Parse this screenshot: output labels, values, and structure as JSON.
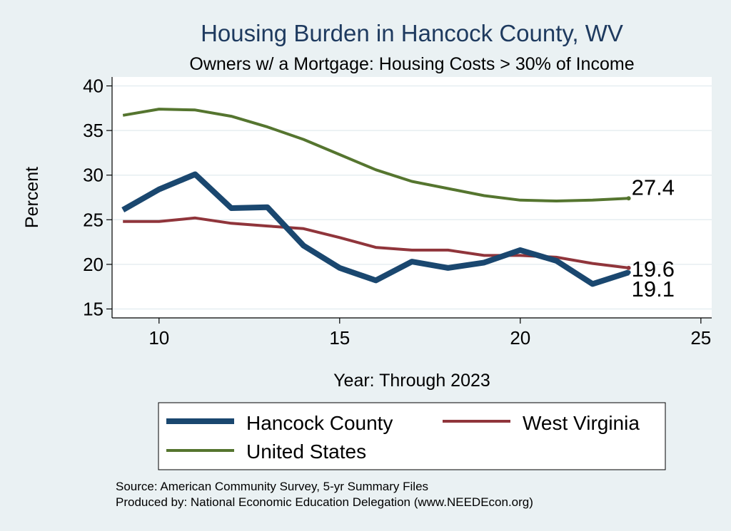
{
  "chart_data": {
    "type": "line",
    "title": "Housing Burden in Hancock County, WV",
    "subtitle": "Owners w/ a Mortgage: Housing Costs > 30% of Income",
    "xlabel": "Year: Through 2023",
    "ylabel": "Percent",
    "xlim": [
      8.7,
      25.3
    ],
    "ylim": [
      14,
      41
    ],
    "xticks": [
      10,
      15,
      20,
      25
    ],
    "yticks": [
      15,
      20,
      25,
      30,
      35,
      40
    ],
    "grid": true,
    "legend_position": "bottom",
    "series": [
      {
        "name": "Hancock County",
        "color": "#1a476f",
        "x": [
          9,
          10,
          11,
          12,
          13,
          14,
          15,
          16,
          17,
          18,
          19,
          20,
          21,
          22,
          23
        ],
        "y": [
          26.1,
          28.4,
          30.1,
          26.3,
          26.4,
          22.1,
          19.6,
          18.2,
          20.3,
          19.6,
          20.2,
          21.6,
          20.4,
          17.8,
          19.1
        ],
        "end_label": "19.1"
      },
      {
        "name": "West Virginia",
        "color": "#90353b",
        "x": [
          9,
          10,
          11,
          12,
          13,
          14,
          15,
          16,
          17,
          18,
          19,
          20,
          21,
          22,
          23
        ],
        "y": [
          24.8,
          24.8,
          25.2,
          24.6,
          24.3,
          24.0,
          23.0,
          21.9,
          21.6,
          21.6,
          21.0,
          21.0,
          20.8,
          20.1,
          19.6
        ],
        "end_label": "19.6"
      },
      {
        "name": "United States",
        "color": "#55752f",
        "x": [
          9,
          10,
          11,
          12,
          13,
          14,
          15,
          16,
          17,
          18,
          19,
          20,
          21,
          22,
          23
        ],
        "y": [
          36.7,
          37.4,
          37.3,
          36.6,
          35.4,
          34.0,
          32.3,
          30.6,
          29.3,
          28.5,
          27.7,
          27.2,
          27.1,
          27.2,
          27.4
        ],
        "end_label": "27.4"
      }
    ]
  },
  "footer": {
    "source": "Source: American Community Survey, 5-yr Summary Files",
    "produced_by": "Produced by: National Economic Education Delegation (www.NEEDEcon.org)"
  }
}
